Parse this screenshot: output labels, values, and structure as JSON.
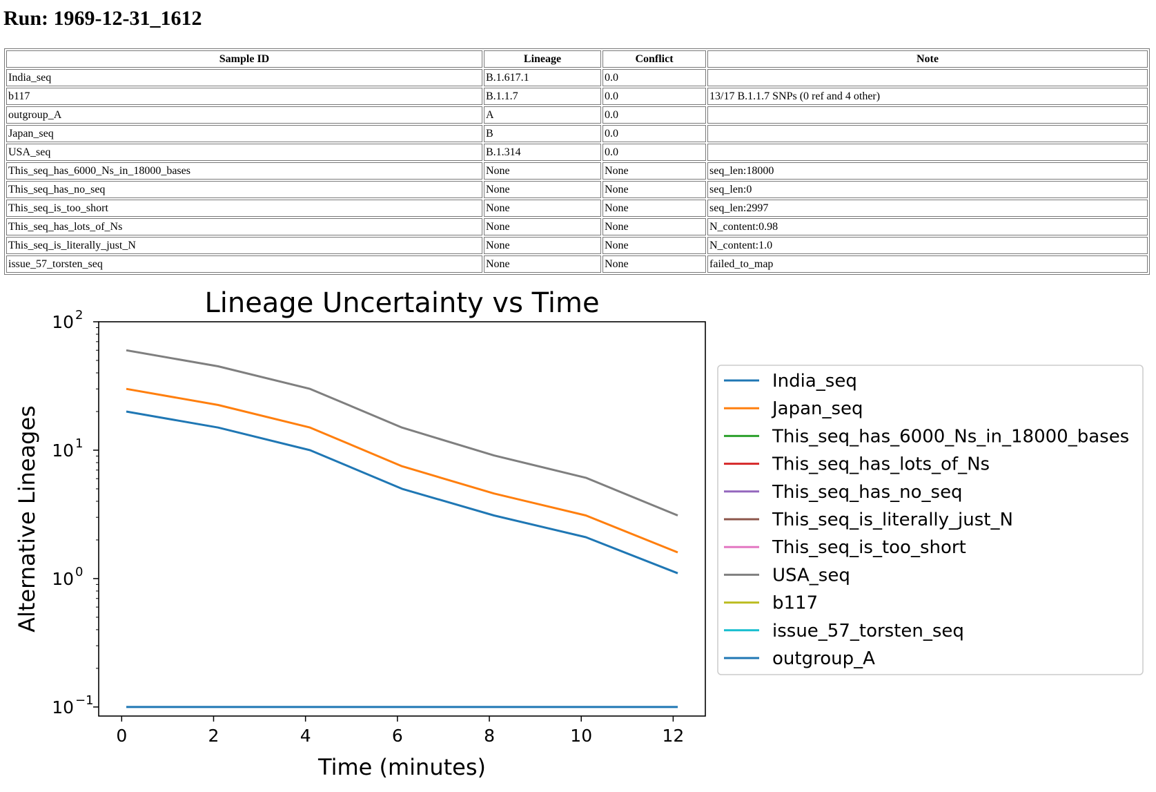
{
  "run": {
    "title": "Run: 1969-12-31_1612"
  },
  "table": {
    "headers": [
      "Sample ID",
      "Lineage",
      "Conflict",
      "Note"
    ],
    "rows": [
      [
        "India_seq",
        "B.1.617.1",
        "0.0",
        ""
      ],
      [
        "b117",
        "B.1.1.7",
        "0.0",
        "13/17 B.1.1.7 SNPs (0 ref and 4 other)"
      ],
      [
        "outgroup_A",
        "A",
        "0.0",
        ""
      ],
      [
        "Japan_seq",
        "B",
        "0.0",
        ""
      ],
      [
        "USA_seq",
        "B.1.314",
        "0.0",
        ""
      ],
      [
        "This_seq_has_6000_Ns_in_18000_bases",
        "None",
        "None",
        "seq_len:18000"
      ],
      [
        "This_seq_has_no_seq",
        "None",
        "None",
        "seq_len:0"
      ],
      [
        "This_seq_is_too_short",
        "None",
        "None",
        "seq_len:2997"
      ],
      [
        "This_seq_has_lots_of_Ns",
        "None",
        "None",
        "N_content:0.98"
      ],
      [
        "This_seq_is_literally_just_N",
        "None",
        "None",
        "N_content:1.0"
      ],
      [
        "issue_57_torsten_seq",
        "None",
        "None",
        "failed_to_map"
      ]
    ]
  },
  "chart_data": {
    "type": "line",
    "title": "Lineage Uncertainty vs Time",
    "xlabel": "Time (minutes)",
    "ylabel": "Alternative Lineages",
    "yscale": "log",
    "xlim": [
      -0.5,
      12.7
    ],
    "ylim": [
      0.085,
      100
    ],
    "xticks": [
      0,
      2,
      4,
      6,
      8,
      10,
      12
    ],
    "yticks": [
      {
        "value": 0.1,
        "base": "10",
        "exp": "−1"
      },
      {
        "value": 1,
        "base": "10",
        "exp": "0"
      },
      {
        "value": 10,
        "base": "10",
        "exp": "1"
      },
      {
        "value": 100,
        "base": "10",
        "exp": "2"
      }
    ],
    "grid": false,
    "legend_position": "right-outside",
    "x": [
      0.1,
      2.1,
      4.1,
      6.1,
      8.1,
      10.1,
      12.1
    ],
    "series": [
      {
        "name": "India_seq",
        "color": "#1f77b4",
        "values": [
          20,
          15,
          10,
          5,
          3.1,
          2.1,
          1.1
        ]
      },
      {
        "name": "Japan_seq",
        "color": "#ff7f0e",
        "values": [
          30,
          22.5,
          15,
          7.5,
          4.6,
          3.1,
          1.6
        ]
      },
      {
        "name": "This_seq_has_6000_Ns_in_18000_bases",
        "color": "#2ca02c",
        "values": [
          null,
          null,
          null,
          null,
          null,
          null,
          null
        ]
      },
      {
        "name": "This_seq_has_lots_of_Ns",
        "color": "#d62728",
        "values": [
          null,
          null,
          null,
          null,
          null,
          null,
          null
        ]
      },
      {
        "name": "This_seq_has_no_seq",
        "color": "#9467bd",
        "values": [
          null,
          null,
          null,
          null,
          null,
          null,
          null
        ]
      },
      {
        "name": "This_seq_is_literally_just_N",
        "color": "#8c564b",
        "values": [
          null,
          null,
          null,
          null,
          null,
          null,
          null
        ]
      },
      {
        "name": "This_seq_is_too_short",
        "color": "#e377c2",
        "values": [
          null,
          null,
          null,
          null,
          null,
          null,
          null
        ]
      },
      {
        "name": "USA_seq",
        "color": "#7f7f7f",
        "values": [
          60,
          45,
          30,
          15,
          9.1,
          6.1,
          3.1
        ]
      },
      {
        "name": "b117",
        "color": "#bcbd22",
        "values": [
          null,
          null,
          null,
          null,
          null,
          null,
          null
        ]
      },
      {
        "name": "issue_57_torsten_seq",
        "color": "#17becf",
        "values": [
          null,
          null,
          null,
          null,
          null,
          null,
          null
        ]
      },
      {
        "name": "outgroup_A",
        "color": "#1f77b4",
        "values": [
          0.1,
          0.1,
          0.1,
          0.1,
          0.1,
          0.1,
          0.1
        ]
      }
    ]
  }
}
